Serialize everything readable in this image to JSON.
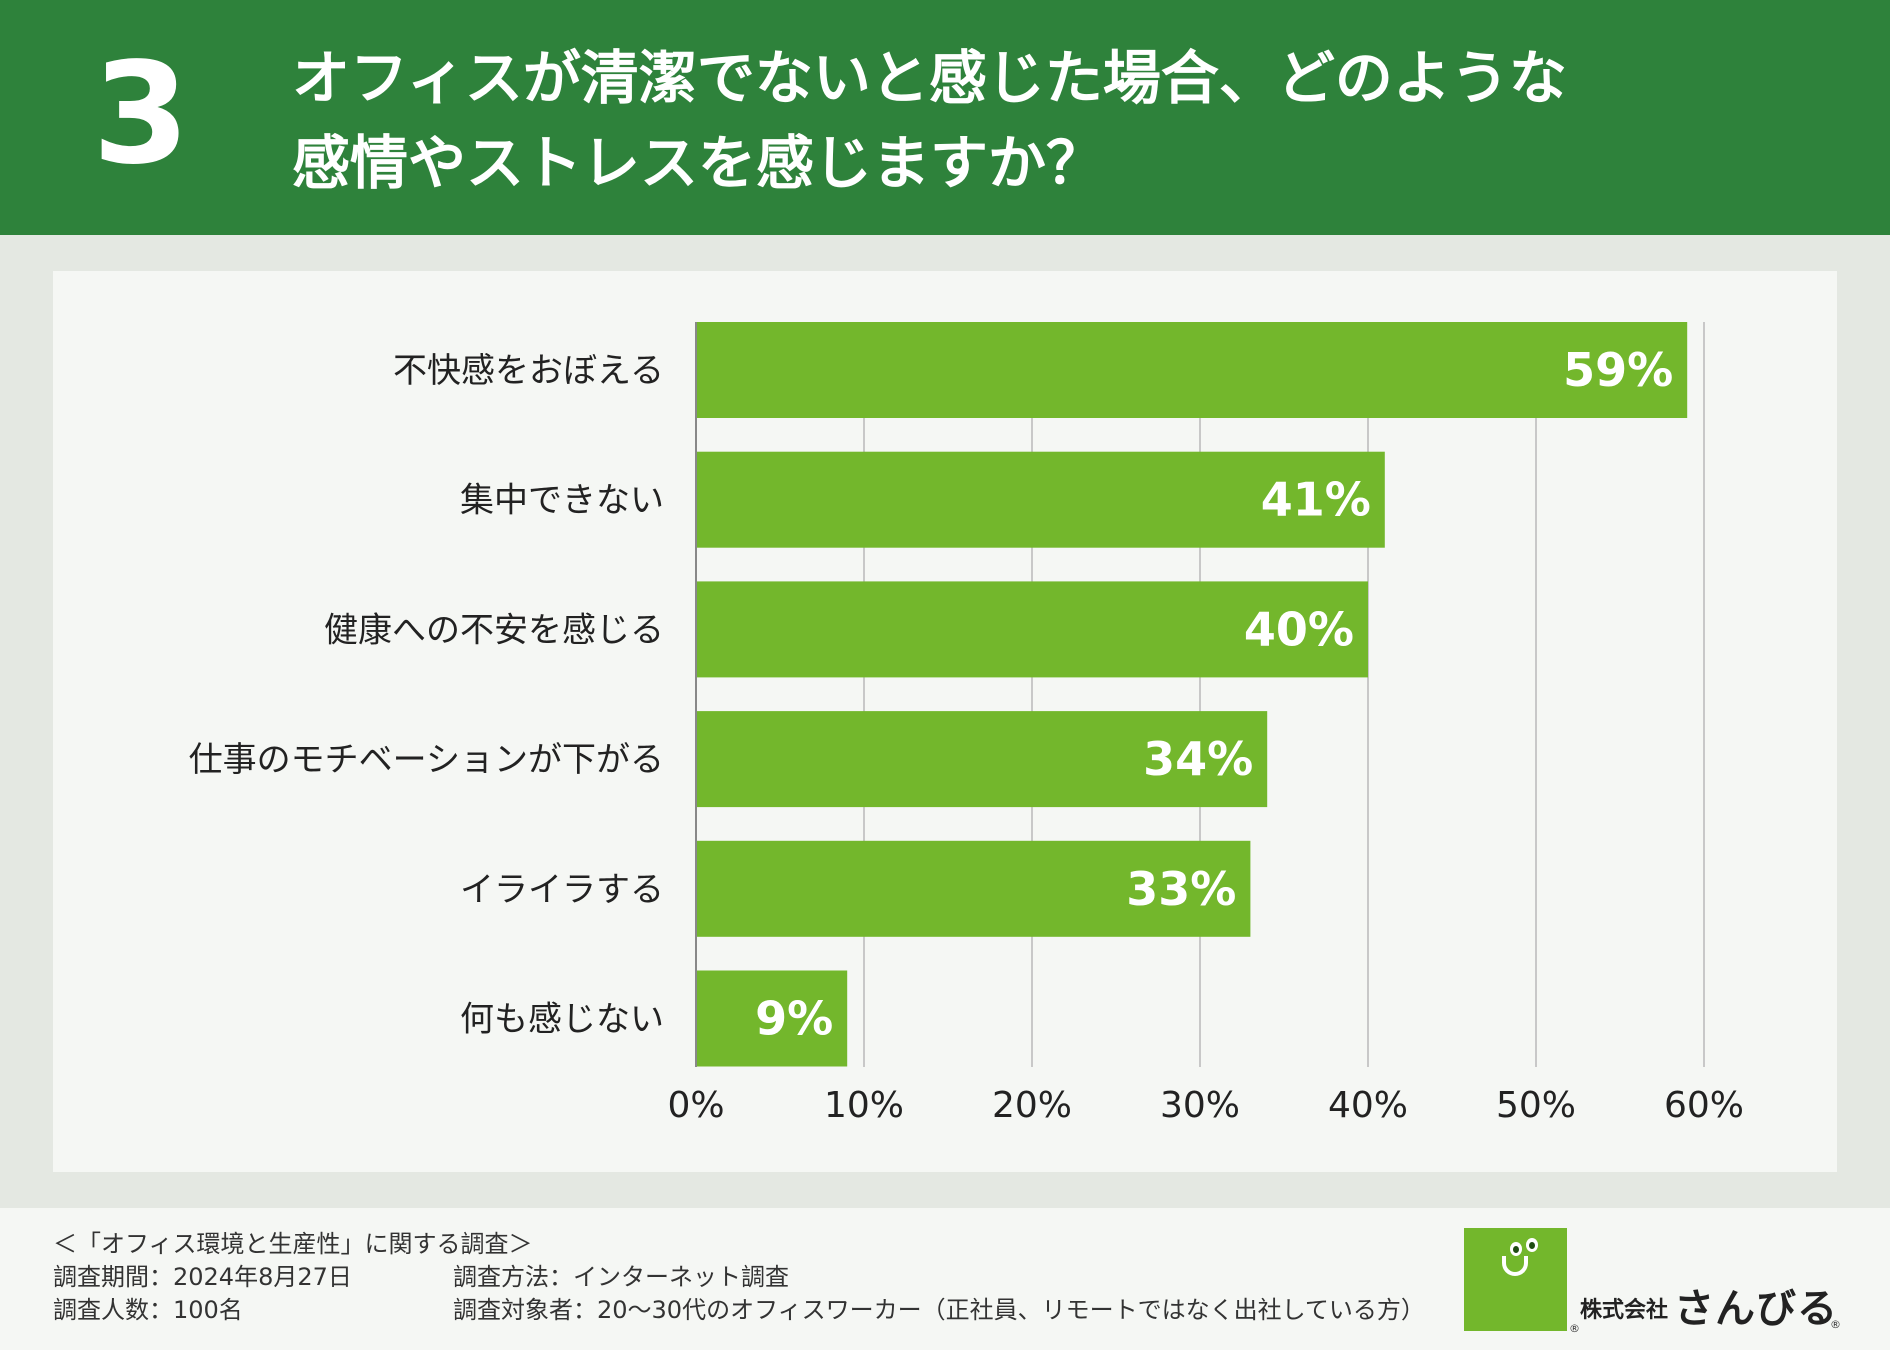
{
  "header": {
    "number": "3",
    "title_line1": "オフィスが清潔でないと感じた場合、どのような",
    "title_line2": "感情やストレスを感じますか？"
  },
  "chart_data": {
    "type": "bar",
    "orientation": "horizontal",
    "categories": [
      "不快感をおぼえる",
      "集中できない",
      "健康への不安を感じる",
      "仕事のモチベーションが下がる",
      "イライラする",
      "何も感じない"
    ],
    "values": [
      59,
      41,
      40,
      34,
      33,
      9
    ],
    "value_labels": [
      "59%",
      "41%",
      "40%",
      "34%",
      "33%",
      "9%"
    ],
    "xlim": [
      0,
      60
    ],
    "xticks": [
      "0%",
      "10%",
      "20%",
      "30%",
      "40%",
      "50%",
      "60%"
    ],
    "grid": true,
    "bar_color": "#73b72c"
  },
  "footer": {
    "survey_name": "＜「オフィス環境と生産性」に関する調査＞",
    "period": "調査期間：2024年8月27日",
    "method": "調査方法：インターネット調査",
    "respondents": "調査人数：100名",
    "target": "調査対象者：20〜30代のオフィスワーカー（正社員、リモートではなく出社している方）"
  },
  "logo": {
    "company_type": "株式会社",
    "name": "さんびる",
    "reg_mark": "®"
  }
}
